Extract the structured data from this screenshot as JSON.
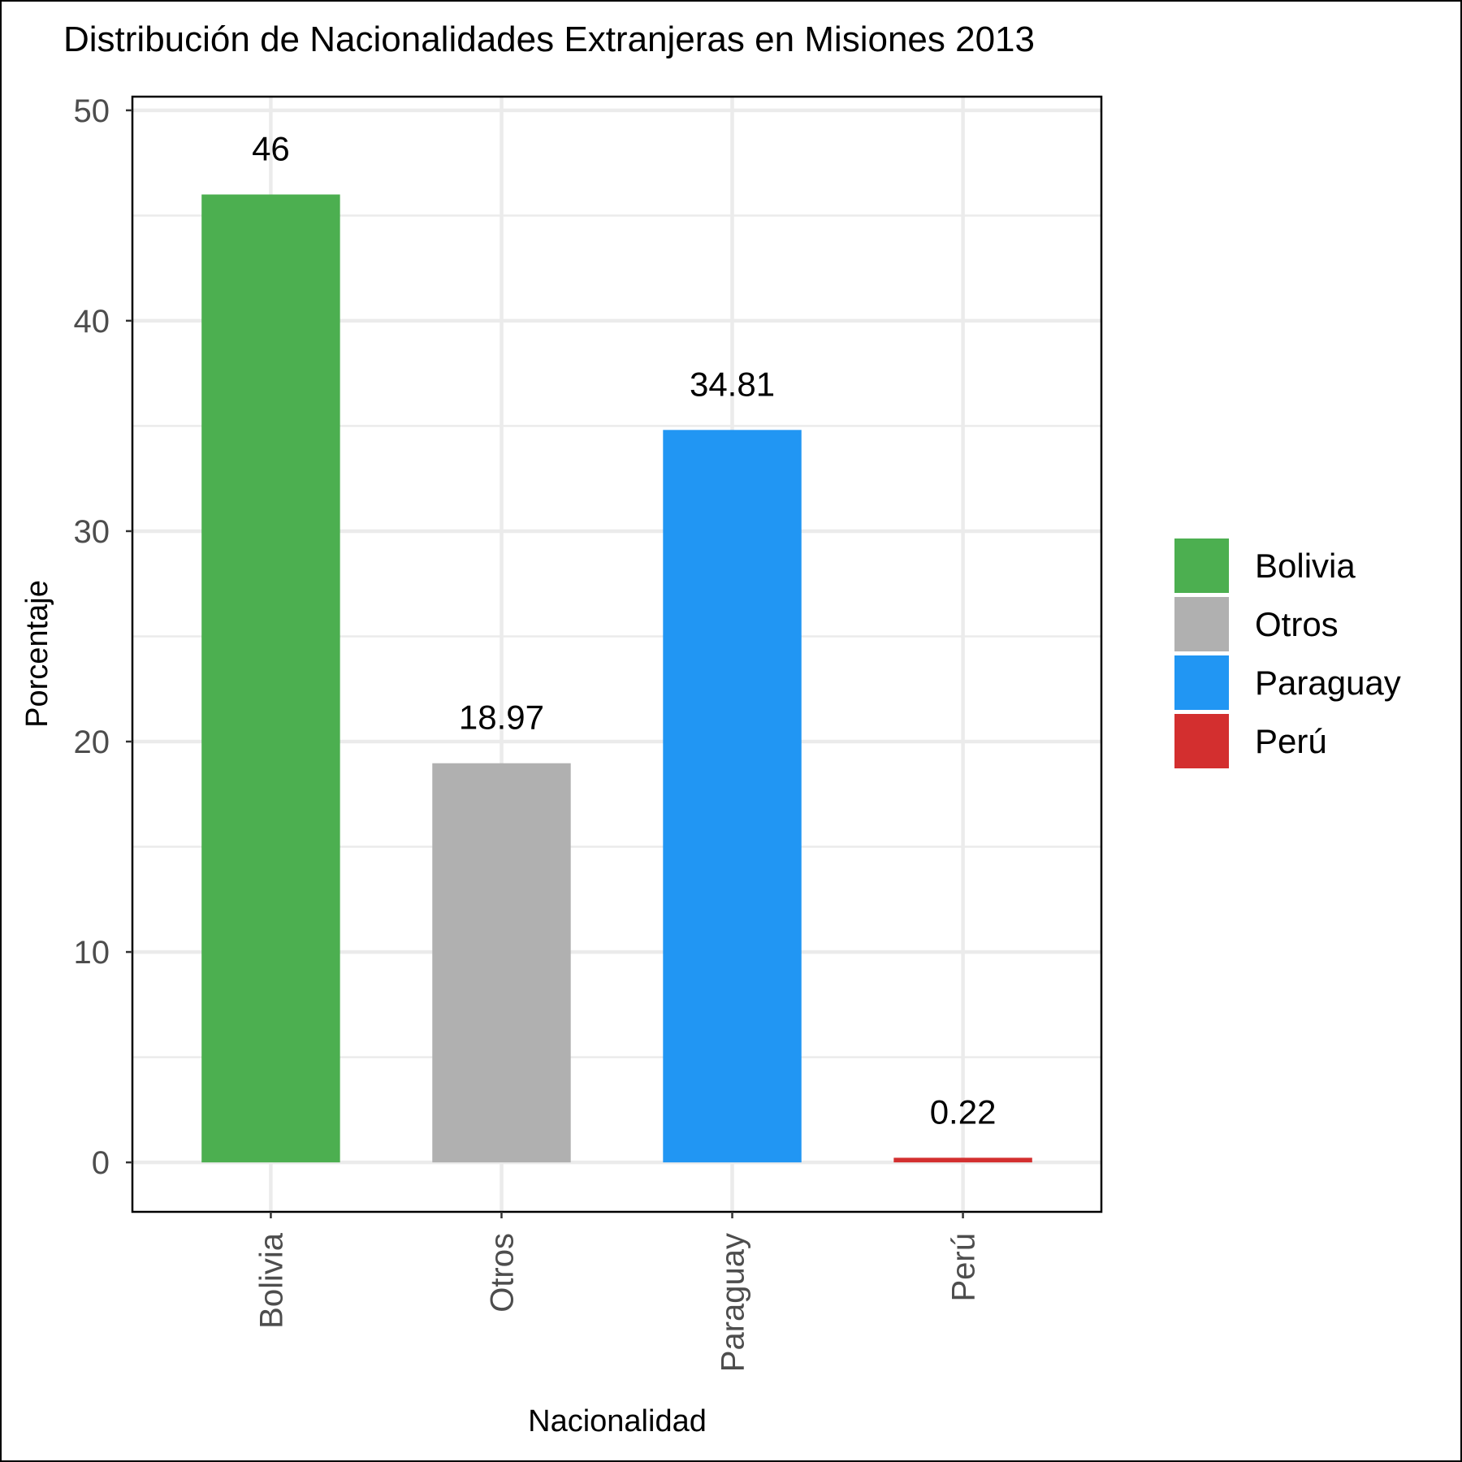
{
  "chart_data": {
    "type": "bar",
    "title": "Distribución de Nacionalidades Extranjeras en Misiones 2013",
    "xlabel": "Nacionalidad",
    "ylabel": "Porcentaje",
    "categories": [
      "Bolivia",
      "Otros",
      "Paraguay",
      "Perú"
    ],
    "values": [
      46,
      18.97,
      34.81,
      0.22
    ],
    "value_labels": [
      "46",
      "18.97",
      "34.81",
      "0.22"
    ],
    "colors": [
      "#4caf50",
      "#b0b0b0",
      "#2196f3",
      "#d32f2f"
    ],
    "yticks": [
      0,
      10,
      20,
      30,
      40,
      50
    ],
    "ylim": [
      -2.35,
      50.65
    ],
    "grid": true,
    "legend_position": "right",
    "legend": [
      "Bolivia",
      "Otros",
      "Paraguay",
      "Perú"
    ]
  }
}
